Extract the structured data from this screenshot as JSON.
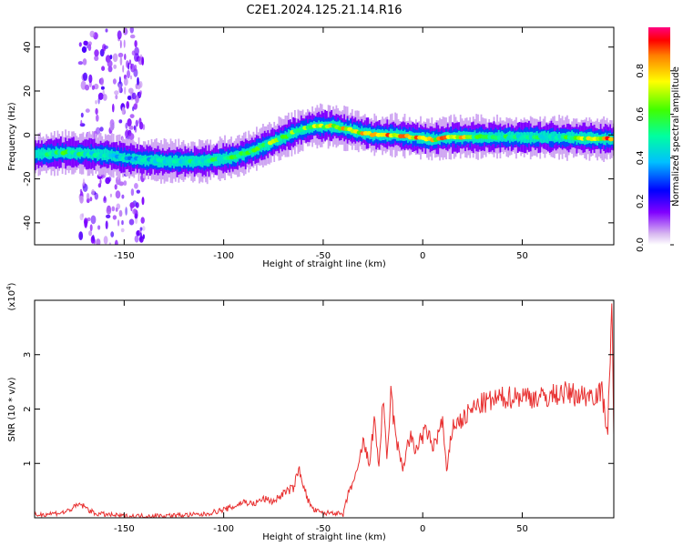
{
  "chart_data": [
    {
      "type": "heatmap",
      "title": "C2E1.2024.125.21.14.R16",
      "xlabel": "Height of straight line (km)",
      "ylabel": "Frequency (Hz)",
      "xlim": [
        -195,
        96
      ],
      "ylim": [
        -50,
        49
      ],
      "x_ticks": [
        -150,
        -100,
        -50,
        0,
        50
      ],
      "y_ticks": [
        -40,
        -20,
        0,
        20,
        40
      ],
      "colorbar": {
        "label": "Normalized spectral amplitude",
        "range": [
          0.0,
          1.0
        ],
        "ticks": [
          "0.0",
          "0.2",
          "0.4",
          "0.6",
          "0.8"
        ],
        "colormap": "rainbow"
      },
      "ridge": {
        "x": [
          -195,
          -180,
          -160,
          -145,
          -130,
          -110,
          -95,
          -85,
          -75,
          -65,
          -55,
          -45,
          -35,
          -25,
          -15,
          -5,
          5,
          15,
          30,
          50,
          70,
          96
        ],
        "frequency_hz": [
          -9,
          -8,
          -9,
          -11,
          -12,
          -12,
          -10,
          -7,
          -3,
          1,
          4,
          4,
          2,
          0,
          0,
          -1,
          -2,
          -1,
          -1,
          -1,
          -1,
          -2
        ],
        "peak_amplitude": [
          0.55,
          0.6,
          0.5,
          0.45,
          0.5,
          0.55,
          0.6,
          0.65,
          0.7,
          0.7,
          0.75,
          0.85,
          0.8,
          0.9,
          0.98,
          0.9,
          0.8,
          0.95,
          0.6,
          0.55,
          0.6,
          0.95
        ]
      },
      "noise_band_x": [
        -172,
        -140
      ]
    },
    {
      "type": "line",
      "xlabel": "Height of straight line (km)",
      "ylabel": "SNR (10 * v/v)",
      "y_multiplier": "(x10^4)",
      "y_multiplier_base": "(x10",
      "y_multiplier_exp": "4",
      "y_multiplier_close": ")",
      "xlim": [
        -195,
        96
      ],
      "ylim": [
        0,
        4
      ],
      "x_ticks": [
        -150,
        -100,
        -50,
        0,
        50
      ],
      "y_ticks": [
        1,
        2,
        3
      ],
      "series": [
        {
          "color": "#e83030",
          "x": [
            -195,
            -180,
            -172,
            -165,
            -150,
            -130,
            -110,
            -100,
            -95,
            -90,
            -85,
            -80,
            -75,
            -70,
            -65,
            -62,
            -58,
            -55,
            -50,
            -45,
            -40,
            -37,
            -33,
            -30,
            -27,
            -24,
            -22,
            -20,
            -18,
            -16,
            -14,
            -12,
            -10,
            -8,
            -6,
            -4,
            -2,
            0,
            2,
            5,
            8,
            10,
            12,
            15,
            20,
            25,
            30,
            35,
            40,
            50,
            60,
            70,
            80,
            90,
            93,
            95,
            96
          ],
          "y": [
            0.05,
            0.1,
            0.25,
            0.08,
            0.03,
            0.04,
            0.06,
            0.15,
            0.2,
            0.3,
            0.25,
            0.35,
            0.3,
            0.45,
            0.55,
            0.9,
            0.35,
            0.15,
            0.08,
            0.1,
            0.05,
            0.5,
            0.8,
            1.4,
            1.0,
            1.8,
            0.9,
            2.2,
            1.0,
            2.3,
            1.6,
            1.2,
            0.9,
            1.3,
            1.5,
            1.2,
            1.4,
            1.5,
            1.6,
            1.3,
            1.55,
            1.8,
            0.8,
            1.7,
            1.8,
            2.0,
            2.1,
            2.15,
            2.2,
            2.25,
            2.2,
            2.3,
            2.25,
            2.3,
            1.6,
            4.0,
            1.4
          ]
        }
      ]
    }
  ]
}
